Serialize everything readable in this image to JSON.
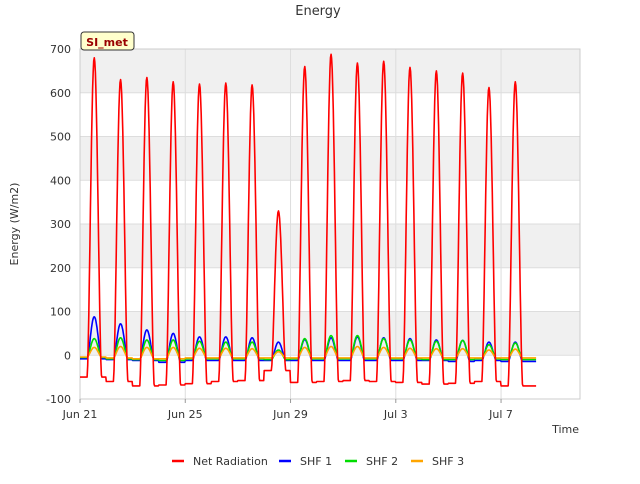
{
  "chart_data": {
    "type": "line",
    "title": "Energy",
    "xlabel": "Time",
    "ylabel": "Energy (W/m2)",
    "site_badge": "SI_met",
    "xlim": [
      "2021-06-21",
      "2021-07-10"
    ],
    "ylim": [
      -100,
      700
    ],
    "y_ticks": [
      -100,
      0,
      100,
      200,
      300,
      400,
      500,
      600,
      700
    ],
    "x_ticks": [
      {
        "date": "2021-06-21",
        "label": "Jun 21"
      },
      {
        "date": "2021-06-25",
        "label": "Jun 25"
      },
      {
        "date": "2021-06-29",
        "label": "Jun 29"
      },
      {
        "date": "2021-07-03",
        "label": "Jul 3"
      },
      {
        "date": "2021-07-07",
        "label": "Jul 7"
      }
    ],
    "grid": true,
    "legend_position": "bottom",
    "days": [
      "2021-06-21",
      "2021-06-22",
      "2021-06-23",
      "2021-06-24",
      "2021-06-25",
      "2021-06-26",
      "2021-06-27",
      "2021-06-28",
      "2021-06-29",
      "2021-06-30",
      "2021-07-01",
      "2021-07-02",
      "2021-07-03",
      "2021-07-04",
      "2021-07-05",
      "2021-07-06",
      "2021-07-07",
      "2021-07-08"
    ],
    "series": [
      {
        "name": "Net Radiation",
        "color": "#ff0000",
        "daily_peak": [
          680,
          630,
          635,
          625,
          620,
          622,
          618,
          330,
          660,
          688,
          668,
          672,
          658,
          650,
          645,
          612,
          625,
          0
        ],
        "night_min": [
          -50,
          -60,
          -70,
          -68,
          -65,
          -60,
          -58,
          -35,
          -62,
          -60,
          -58,
          -60,
          -62,
          -66,
          -64,
          -60,
          -70,
          -70
        ]
      },
      {
        "name": "SHF 1",
        "color": "#0000ff",
        "daily_peak": [
          88,
          72,
          58,
          50,
          42,
          42,
          40,
          30,
          36,
          40,
          42,
          40,
          38,
          35,
          34,
          30,
          30,
          0
        ],
        "night_min": [
          -8,
          -10,
          -12,
          -16,
          -12,
          -12,
          -12,
          -12,
          -12,
          -12,
          -12,
          -12,
          -12,
          -12,
          -14,
          -12,
          -14,
          -14
        ]
      },
      {
        "name": "SHF 2",
        "color": "#00dd00",
        "daily_peak": [
          38,
          40,
          35,
          35,
          32,
          30,
          30,
          12,
          38,
          45,
          45,
          38,
          35,
          32,
          34,
          24,
          28,
          0
        ],
        "night_min": [
          -5,
          -8,
          -10,
          -12,
          -8,
          -8,
          -8,
          -10,
          -8,
          -8,
          -8,
          -8,
          -8,
          -10,
          -10,
          -8,
          -10,
          -10
        ]
      },
      {
        "name": "SHF 3",
        "color": "#ffa500",
        "daily_peak": [
          18,
          20,
          18,
          18,
          16,
          16,
          15,
          8,
          18,
          20,
          20,
          18,
          16,
          15,
          15,
          12,
          14,
          0
        ],
        "night_min": [
          -4,
          -6,
          -8,
          -8,
          -6,
          -6,
          -6,
          -6,
          -6,
          -6,
          -6,
          -6,
          -6,
          -6,
          -6,
          -6,
          -6,
          -6
        ]
      }
    ]
  }
}
